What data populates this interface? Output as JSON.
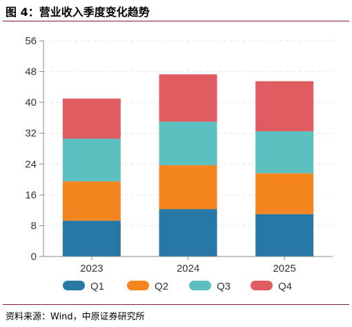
{
  "figure": {
    "title": "图 4：营业收入季度变化趋势",
    "source": "资料来源：Wind，中原证券研究所"
  },
  "colors": {
    "Q1": "#2778a4",
    "Q2": "#f5851f",
    "Q3": "#5cbfc0",
    "Q4": "#e05c60",
    "rule": "#7a1f2b",
    "grid": "#e6e6e6",
    "axis": "#888888"
  },
  "chart_data": {
    "type": "bar",
    "stacked": true,
    "categories": [
      "2023",
      "2024",
      "2025"
    ],
    "series": [
      {
        "name": "Q1",
        "values": [
          9.3,
          12.3,
          11.0
        ]
      },
      {
        "name": "Q2",
        "values": [
          10.2,
          11.4,
          10.6
        ]
      },
      {
        "name": "Q3",
        "values": [
          11.1,
          11.3,
          10.9
        ]
      },
      {
        "name": "Q4",
        "values": [
          10.4,
          12.3,
          13.0
        ]
      }
    ],
    "ylim": [
      0,
      56
    ],
    "yticks": [
      "0",
      "8",
      "16",
      "24",
      "32",
      "40",
      "48",
      "56"
    ],
    "xlabel": "",
    "ylabel": "",
    "grid": true,
    "legend": "bottom"
  }
}
